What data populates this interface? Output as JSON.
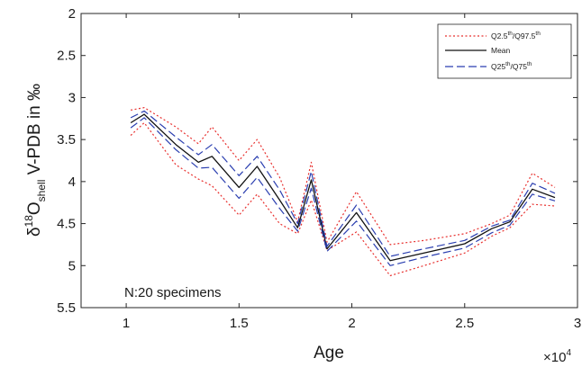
{
  "chart_data": {
    "type": "line",
    "xlabel": "Age",
    "x_exponent_label": "×10",
    "x_exponent_power": "4",
    "ylabel": {
      "delta": "δ",
      "superscript": "18",
      "main": "O",
      "subscript": "shell",
      "rest": " V-PDB in ‰"
    },
    "xlim": [
      0.8,
      3.0
    ],
    "ylim": [
      2.0,
      5.5
    ],
    "y_reversed": true,
    "x_ticks": [
      1,
      1.5,
      2,
      2.5,
      3
    ],
    "x_tick_labels": [
      "1",
      "1.5",
      "2",
      "2.5",
      "3"
    ],
    "y_ticks": [
      2,
      2.5,
      3,
      3.5,
      4,
      4.5,
      5,
      5.5
    ],
    "y_tick_labels": [
      "2",
      "2.5",
      "3",
      "3.5",
      "4",
      "4.5",
      "5",
      "5.5"
    ],
    "grid": false,
    "legend_position": "top-right",
    "annotation": "N:20 specimens",
    "x": [
      1.02,
      1.08,
      1.22,
      1.32,
      1.38,
      1.5,
      1.58,
      1.68,
      1.76,
      1.82,
      1.89,
      2.02,
      2.17,
      2.32,
      2.5,
      2.62,
      2.7,
      2.8,
      2.9
    ],
    "series": [
      {
        "name": "Q2.5th/Q97.5th",
        "label_parts": [
          "Q2.5",
          "th",
          "/Q97.5",
          "th"
        ],
        "style": "dotted",
        "color": "#e8312f",
        "values_upper": [
          3.15,
          3.12,
          3.35,
          3.55,
          3.35,
          3.75,
          3.5,
          3.95,
          4.48,
          3.77,
          4.72,
          4.12,
          4.75,
          4.7,
          4.62,
          4.5,
          4.4,
          3.9,
          4.07
        ],
        "values_lower": [
          3.45,
          3.3,
          3.8,
          3.97,
          4.05,
          4.4,
          4.15,
          4.5,
          4.62,
          4.22,
          4.82,
          4.6,
          5.12,
          5.0,
          4.85,
          4.65,
          4.55,
          4.27,
          4.29
        ]
      },
      {
        "name": "Mean",
        "label_parts": [
          "Mean"
        ],
        "style": "solid",
        "color": "#111111",
        "values": [
          3.3,
          3.2,
          3.56,
          3.77,
          3.7,
          4.07,
          3.82,
          4.22,
          4.55,
          3.98,
          4.8,
          4.37,
          4.94,
          4.85,
          4.74,
          4.56,
          4.48,
          4.09,
          4.19
        ]
      },
      {
        "name": "Q25th/Q75th",
        "label_parts": [
          "Q25",
          "th",
          "/Q75",
          "th"
        ],
        "style": "dashed",
        "color": "#2b3fb0",
        "values_upper": [
          3.24,
          3.16,
          3.47,
          3.68,
          3.56,
          3.93,
          3.7,
          4.1,
          4.5,
          3.88,
          4.77,
          4.28,
          4.89,
          4.8,
          4.7,
          4.53,
          4.46,
          4.02,
          4.14
        ],
        "values_lower": [
          3.36,
          3.24,
          3.62,
          3.84,
          3.83,
          4.2,
          3.95,
          4.32,
          4.59,
          4.08,
          4.83,
          4.47,
          5.0,
          4.9,
          4.79,
          4.61,
          4.52,
          4.15,
          4.23
        ]
      }
    ]
  }
}
